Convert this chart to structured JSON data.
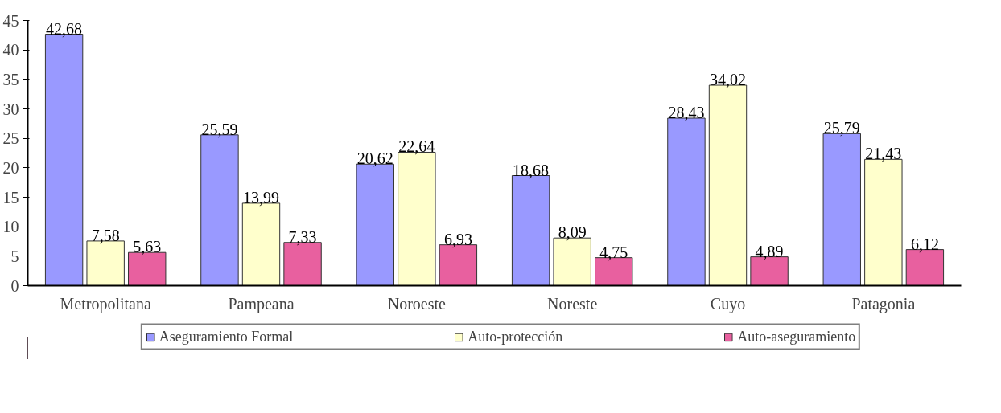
{
  "chart_data": {
    "type": "bar",
    "categories": [
      "Metropolitana",
      "Pampeana",
      "Noroeste",
      "Noreste",
      "Cuyo",
      "Patagonia"
    ],
    "series": [
      {
        "name": "Aseguramiento Formal",
        "color": "#9999ff",
        "values": [
          42.68,
          25.59,
          20.62,
          18.68,
          28.43,
          25.79
        ],
        "value_labels": [
          "42,68",
          "25,59",
          "20,62",
          "18,68",
          "28,43",
          "25,79"
        ]
      },
      {
        "name": "Auto-protección",
        "color": "#ffffcc",
        "values": [
          7.58,
          13.99,
          22.64,
          8.09,
          34.02,
          21.43
        ],
        "value_labels": [
          "7,58",
          "13,99",
          "22,64",
          "8,09",
          "34,02",
          "21,43"
        ]
      },
      {
        "name": "Auto-aseguramiento",
        "color": "#e8609f",
        "values": [
          5.63,
          7.33,
          6.93,
          4.75,
          4.89,
          6.12
        ],
        "value_labels": [
          "5,63",
          "7,33",
          "6,93",
          "4,75",
          "4,89",
          "6,12"
        ]
      }
    ],
    "ylim": [
      0,
      45
    ],
    "yticks": [
      0,
      5,
      10,
      15,
      20,
      25,
      30,
      35,
      40,
      45
    ],
    "grid": false,
    "legend": "bottom"
  }
}
